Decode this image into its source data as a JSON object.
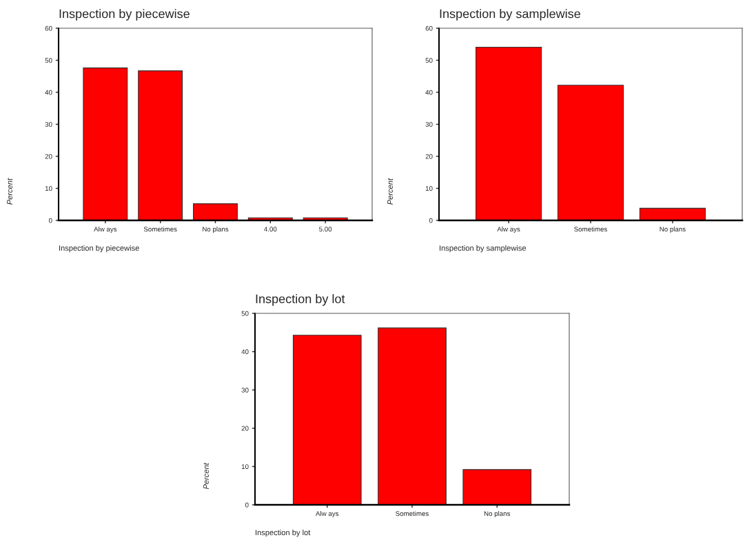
{
  "chart_data": [
    {
      "type": "bar",
      "title": "Inspection by piecewise",
      "xlabel": "Inspection by piecewise",
      "ylabel": "Percent",
      "categories": [
        "Alw ays",
        "Sometimes",
        "No plans",
        "4.00",
        "5.00"
      ],
      "values": [
        47.6,
        46.7,
        5.2,
        0.8,
        0.8
      ],
      "color": "#ff0000",
      "ylim": [
        0,
        60
      ],
      "yticks": [
        0,
        10,
        20,
        30,
        40,
        50,
        60
      ],
      "grid": false,
      "legend": false
    },
    {
      "type": "bar",
      "title": "Inspection by samplewise",
      "xlabel": "Inspection by samplewise",
      "ylabel": "Percent",
      "categories": [
        "Alw ays",
        "Sometimes",
        "No plans"
      ],
      "values": [
        54.1,
        42.2,
        3.8
      ],
      "color": "#ff0000",
      "ylim": [
        0,
        60
      ],
      "yticks": [
        0,
        10,
        20,
        30,
        40,
        50,
        60
      ],
      "grid": false,
      "legend": false
    },
    {
      "type": "bar",
      "title": "Inspection by lot",
      "xlabel": "Inspection by lot",
      "ylabel": "Percent",
      "categories": [
        "Alw ays",
        "Sometimes",
        "No plans"
      ],
      "values": [
        44.3,
        46.2,
        9.2
      ],
      "color": "#ff0000",
      "ylim": [
        0,
        50
      ],
      "yticks": [
        0,
        10,
        20,
        30,
        40,
        50
      ],
      "grid": false,
      "legend": false
    }
  ]
}
